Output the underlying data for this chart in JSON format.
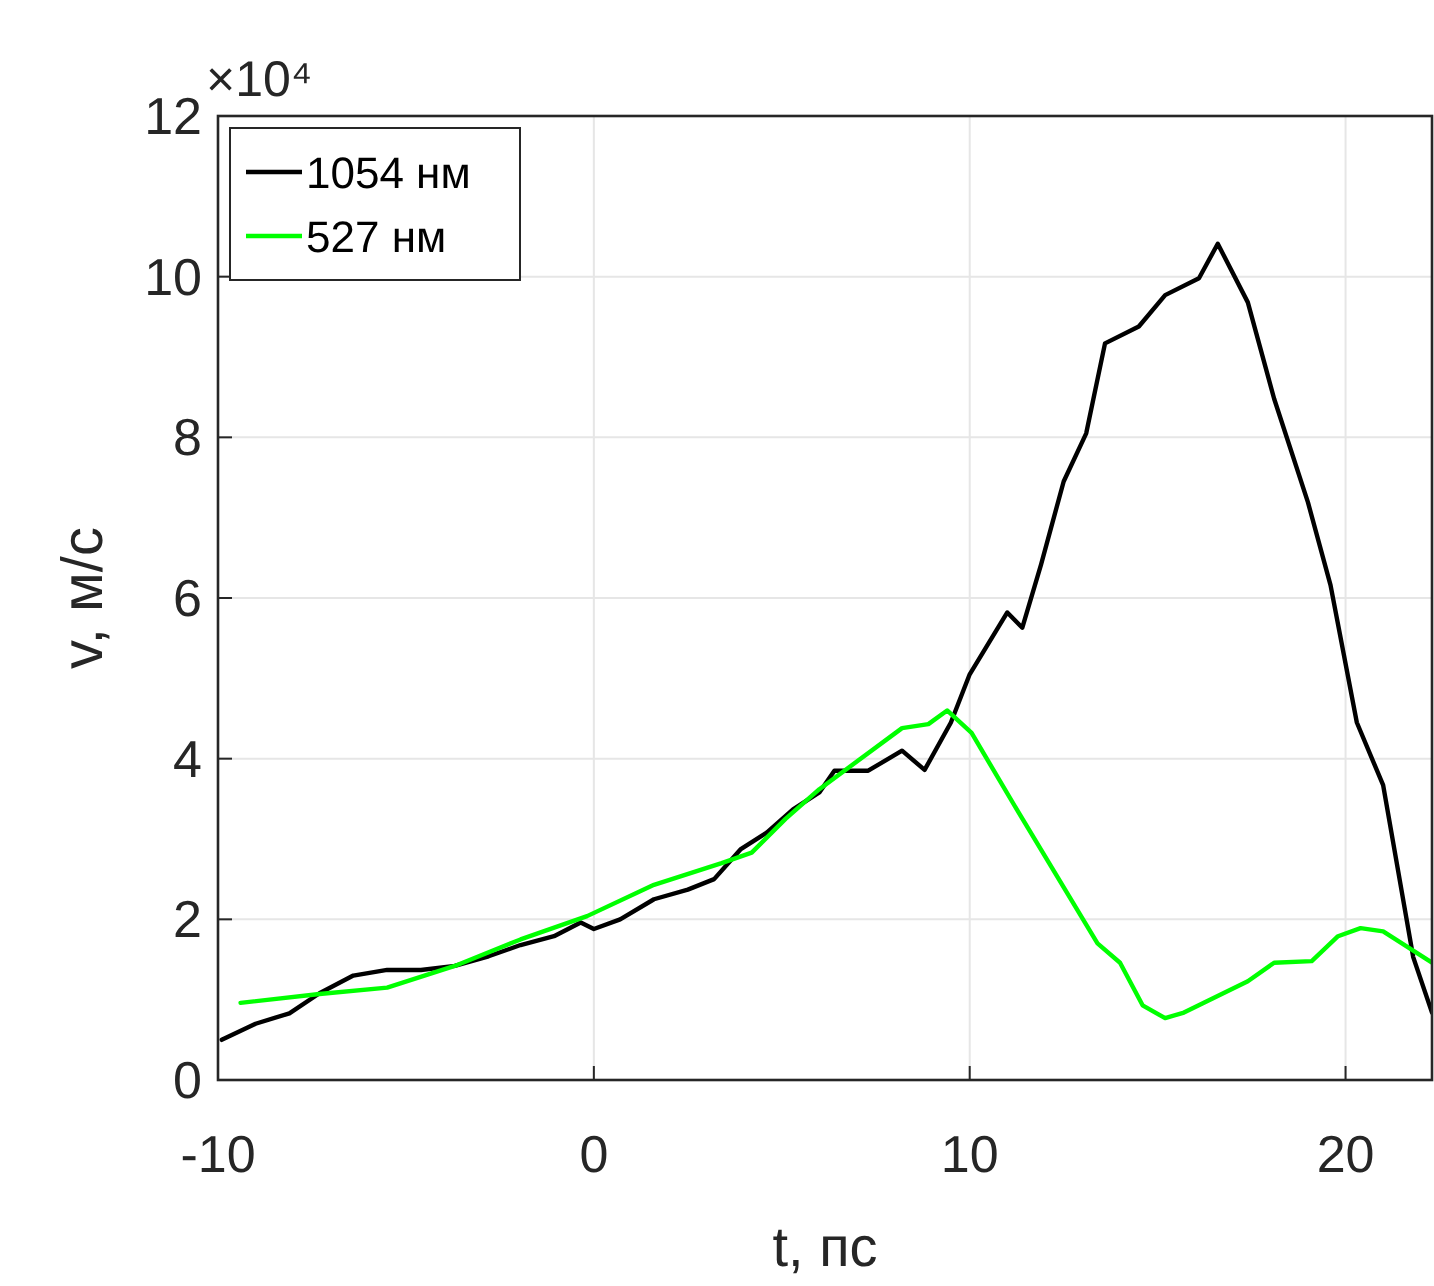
{
  "chart_data": {
    "type": "line",
    "xlabel": "t, пс",
    "ylabel": "v, м/с",
    "annotations": [
      "×10⁴"
    ],
    "xlim": [
      -10,
      22.3
    ],
    "xticks": [
      -10,
      0,
      10,
      20
    ],
    "ylim": [
      0,
      12
    ],
    "yticks": [
      0,
      2,
      4,
      6,
      8,
      10,
      12
    ],
    "grid": true,
    "legend": "top left",
    "line_style": "solid",
    "marker": "none",
    "series": [
      {
        "name": "1054 нм",
        "color": "#000000",
        "x": [
          -9.9,
          -9.0,
          -8.1,
          -7.3,
          -6.4,
          -5.5,
          -4.6,
          -3.7,
          -2.8,
          -1.95,
          -1.06,
          -0.35,
          0,
          0.7,
          1.6,
          2.5,
          3.2,
          3.9,
          4.6,
          5.3,
          6.0,
          6.4,
          7.3,
          8.2,
          8.8,
          9.5,
          10,
          11,
          11.4,
          11.9,
          12.5,
          13.1,
          13.6,
          14.5,
          15.2,
          16.1,
          16.6,
          17.4,
          18.1,
          19.0,
          19.6,
          20.3,
          21.0,
          21.8,
          22.3
        ],
        "values": [
          0.5,
          0.7,
          0.83,
          1.08,
          1.3,
          1.37,
          1.37,
          1.42,
          1.54,
          1.68,
          1.79,
          1.96,
          1.88,
          2.0,
          2.25,
          2.37,
          2.5,
          2.87,
          3.08,
          3.37,
          3.58,
          3.85,
          3.85,
          4.1,
          3.86,
          4.45,
          5.05,
          5.82,
          5.63,
          6.42,
          7.45,
          8.05,
          9.17,
          9.38,
          9.77,
          9.98,
          10.41,
          9.68,
          8.48,
          7.19,
          6.16,
          4.45,
          3.67,
          1.53,
          0.84
        ]
      },
      {
        "name": "527 нм",
        "color": "#00ff00",
        "x": [
          -9.4,
          -7.3,
          -5.5,
          -3.7,
          -1.95,
          -0.18,
          1.6,
          3.4,
          4.2,
          5.1,
          6.0,
          8.2,
          8.9,
          9.4,
          10.05,
          11.3,
          13.4,
          14.0,
          14.6,
          15.2,
          15.7,
          17.4,
          18.1,
          19.1,
          19.8,
          20.4,
          21.0,
          22.3
        ],
        "values": [
          0.96,
          1.07,
          1.15,
          1.42,
          1.75,
          2.04,
          2.43,
          2.7,
          2.83,
          3.25,
          3.62,
          4.38,
          4.43,
          4.6,
          4.32,
          3.33,
          1.7,
          1.46,
          0.93,
          0.77,
          0.84,
          1.23,
          1.46,
          1.48,
          1.79,
          1.89,
          1.85,
          1.46
        ]
      }
    ]
  }
}
